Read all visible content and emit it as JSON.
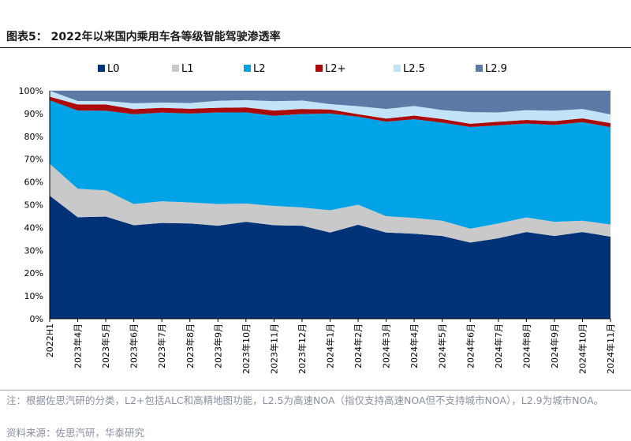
{
  "figure": {
    "title": "图表5：  2022年以来国内乘用车各等级智能驾驶渗透率",
    "note": "注：根据佐思汽研的分类，L2+包括ALC和高精地图功能，L2.5为高速NOA（指仅支持高速NOA但不支持城市NOA），L2.9为城市NOA。",
    "source": "资料来源：佐思汽研，华泰研究"
  },
  "colors": {
    "L0": "#003277",
    "L1": "#c9c9c9",
    "L2": "#00a3e6",
    "L2+": "#aa0c0c",
    "L2.5": "#c2e4f8",
    "L2.9": "#5b7aa6",
    "grid": "#d9d9d9",
    "axis": "#000000"
  },
  "chart_data": {
    "type": "area",
    "stacked": true,
    "title": "",
    "xlabel": "",
    "ylabel": "",
    "ylim": [
      0,
      100
    ],
    "y_ticks": [
      "0%",
      "10%",
      "20%",
      "30%",
      "40%",
      "50%",
      "60%",
      "70%",
      "80%",
      "90%",
      "100%"
    ],
    "categories": [
      "2022H1",
      "2023年4月",
      "2023年5月",
      "2023年6月",
      "2023年7月",
      "2023年8月",
      "2023年9月",
      "2023年10月",
      "2023年11月",
      "2023年12月",
      "2024年1月",
      "2024年2月",
      "2024年3月",
      "2024年4月",
      "2024年5月",
      "2024年6月",
      "2024年7月",
      "2024年8月",
      "2024年9月",
      "2024年10月",
      "2024年11月"
    ],
    "legend_position": "top",
    "series": [
      {
        "name": "L0",
        "values": [
          54,
          44.5,
          44.8,
          41,
          42,
          41.8,
          40.8,
          42.5,
          41,
          40.8,
          37.8,
          41.2,
          37.8,
          37.3,
          36.3,
          33.4,
          35.3,
          38,
          36.3,
          38,
          36
        ]
      },
      {
        "name": "L1",
        "values": [
          14,
          12.5,
          11.5,
          9.3,
          9.5,
          9.2,
          9.5,
          8,
          8.5,
          8,
          9.8,
          8.8,
          7.2,
          6.9,
          6.7,
          6.1,
          6.5,
          6.4,
          6.2,
          5,
          5.3
        ]
      },
      {
        "name": "L2",
        "values": [
          27.8,
          34.3,
          34.9,
          39.4,
          38.9,
          39,
          40.2,
          40,
          39.5,
          41,
          42.4,
          38.6,
          41.4,
          43.3,
          43,
          44.6,
          43,
          41.2,
          42.5,
          43.2,
          42.7
        ]
      },
      {
        "name": "L2+",
        "values": [
          1.6,
          2.7,
          2.8,
          2.2,
          2.1,
          2.1,
          2,
          2.2,
          2.3,
          2.2,
          1.8,
          1.1,
          1.4,
          1.6,
          1.6,
          1.4,
          1.6,
          1.6,
          1.7,
          1.7,
          1.8
        ]
      },
      {
        "name": "L2.5",
        "values": [
          2.6,
          1.5,
          1.5,
          2.6,
          2.3,
          2.5,
          3.1,
          3.2,
          4.1,
          3.7,
          2.3,
          3.5,
          4.2,
          4.2,
          3.9,
          5.1,
          4.1,
          4.3,
          4.5,
          4.1,
          3.8
        ]
      },
      {
        "name": "L2.9",
        "values": [
          0,
          4.5,
          4.5,
          5.5,
          5.2,
          5.4,
          4.4,
          4.1,
          4.6,
          4.3,
          5.9,
          6.8,
          8,
          6.7,
          8.5,
          9.4,
          9.5,
          8.5,
          8.8,
          8,
          10.4
        ]
      }
    ]
  }
}
